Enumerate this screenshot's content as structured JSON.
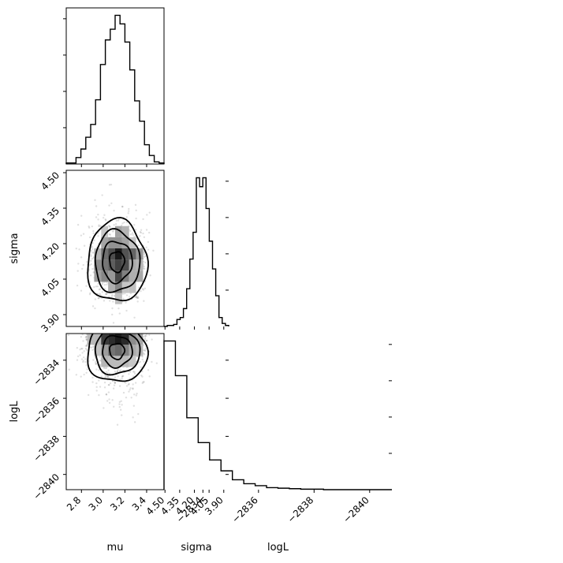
{
  "chart_data": {
    "type": "corner",
    "parameters": [
      "mu",
      "sigma",
      "logL"
    ],
    "axis_labels": {
      "mu": "mu",
      "sigma": "sigma",
      "logL": "logL"
    },
    "ranges": {
      "mu": [
        2.66,
        3.56
      ],
      "sigma": [
        3.85,
        4.51
      ],
      "logL": [
        -2840.8,
        -2832.6
      ]
    },
    "ticks": {
      "mu": [
        2.8,
        3.0,
        3.2,
        3.4
      ],
      "sigma": [
        3.9,
        4.05,
        4.2,
        4.35,
        4.5
      ],
      "logL": [
        -2840,
        -2838,
        -2836,
        -2834
      ]
    },
    "tick_labels": {
      "mu": [
        "2.8",
        "3.0",
        "3.2",
        "3.4"
      ],
      "sigma": [
        "3.90",
        "4.05",
        "4.20",
        "4.35",
        "4.50"
      ],
      "logL": [
        "−2840",
        "−2838",
        "−2836",
        "−2834"
      ]
    },
    "histograms": {
      "mu": {
        "edges": [
          2.66,
          2.705,
          2.75,
          2.795,
          2.84,
          2.885,
          2.93,
          2.975,
          3.02,
          3.065,
          3.11,
          3.155,
          3.2,
          3.245,
          3.29,
          3.335,
          3.38,
          3.425,
          3.47,
          3.515,
          3.56
        ],
        "counts": [
          1,
          1,
          6,
          14,
          25,
          37,
          60,
          93,
          116,
          126,
          139,
          131,
          114,
          88,
          59,
          40,
          18,
          8,
          2,
          1
        ]
      },
      "sigma": {
        "edges": [
          3.85,
          3.883,
          3.916,
          3.949,
          3.982,
          4.015,
          4.048,
          4.081,
          4.114,
          4.147,
          4.18,
          4.213,
          4.246,
          4.279,
          4.312,
          4.345,
          4.378,
          4.411,
          4.444,
          4.477,
          4.51
        ],
        "counts": [
          1,
          3,
          9,
          31,
          58,
          86,
          119,
          150,
          141,
          150,
          95,
          68,
          38,
          18,
          9,
          7,
          2,
          1,
          1,
          0
        ]
      },
      "logL": {
        "edges": [
          -2840.8,
          -2840.39,
          -2839.98,
          -2839.57,
          -2839.16,
          -2838.75,
          -2838.34,
          -2837.93,
          -2837.52,
          -2837.11,
          -2836.7,
          -2836.29,
          -2835.88,
          -2835.47,
          -2835.06,
          -2834.65,
          -2834.24,
          -2833.83,
          -2833.42,
          -2833.01,
          -2832.6
        ],
        "counts": [
          0,
          0,
          0,
          0,
          0,
          0,
          1,
          1,
          2,
          3,
          4,
          8,
          12,
          20,
          38,
          60,
          95,
          145,
          230,
          300
        ]
      }
    },
    "correlations": {
      "mu_sigma": 0.0,
      "mu_logL": 0.0,
      "sigma_logL": 0.0
    }
  }
}
